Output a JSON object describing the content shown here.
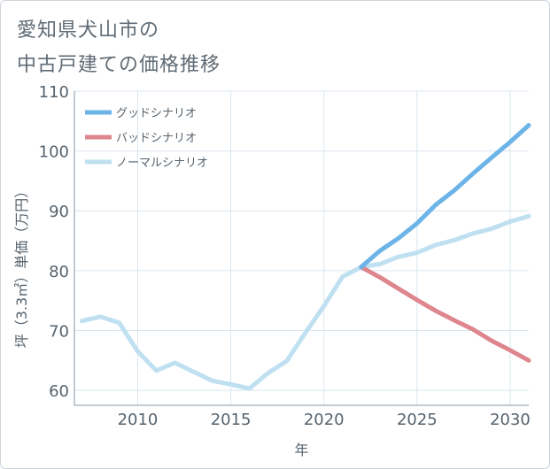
{
  "title_line1": "愛知県犬山市の",
  "title_line2": "中古戸建ての価格推移",
  "chart_data": {
    "type": "line",
    "xlabel": "年",
    "ylabel": "坪（3.3㎡）単価（万円）",
    "xlim": [
      2006.6,
      2031
    ],
    "ylim": [
      57.5,
      110
    ],
    "xticks": [
      2010,
      2015,
      2020,
      2025,
      2030
    ],
    "yticks": [
      60,
      70,
      80,
      90,
      100,
      110
    ],
    "grid": true,
    "legend_position": "top-left",
    "series": [
      {
        "name": "グッドシナリオ",
        "color": "#6cb4e8",
        "x": [
          2022,
          2023,
          2024,
          2025,
          2026,
          2027,
          2028,
          2029,
          2030,
          2031
        ],
        "y": [
          80.6,
          83.3,
          85.4,
          87.9,
          91.0,
          93.4,
          96.2,
          98.9,
          101.5,
          104.3
        ]
      },
      {
        "name": "バッドシナリオ",
        "color": "#de858e",
        "x": [
          2022,
          2023,
          2024,
          2025,
          2026,
          2027,
          2028,
          2029,
          2030,
          2031
        ],
        "y": [
          80.6,
          78.9,
          77.0,
          75.1,
          73.3,
          71.7,
          70.2,
          68.3,
          66.7,
          65.0
        ]
      },
      {
        "name": "ノーマルシナリオ",
        "color": "#bfe0f1",
        "x": [
          2007,
          2008,
          2009,
          2010,
          2011,
          2012,
          2013,
          2014,
          2015,
          2016,
          2017,
          2018,
          2019,
          2020,
          2021,
          2022,
          2023,
          2024,
          2025,
          2026,
          2027,
          2028,
          2029,
          2030,
          2031
        ],
        "y": [
          71.6,
          72.3,
          71.3,
          66.5,
          63.3,
          64.6,
          63.1,
          61.6,
          61.0,
          60.3,
          62.9,
          64.9,
          69.6,
          74.1,
          79.0,
          80.6,
          81.1,
          82.3,
          83.0,
          84.3,
          85.1,
          86.2,
          87.0,
          88.2,
          89.1
        ]
      }
    ]
  }
}
